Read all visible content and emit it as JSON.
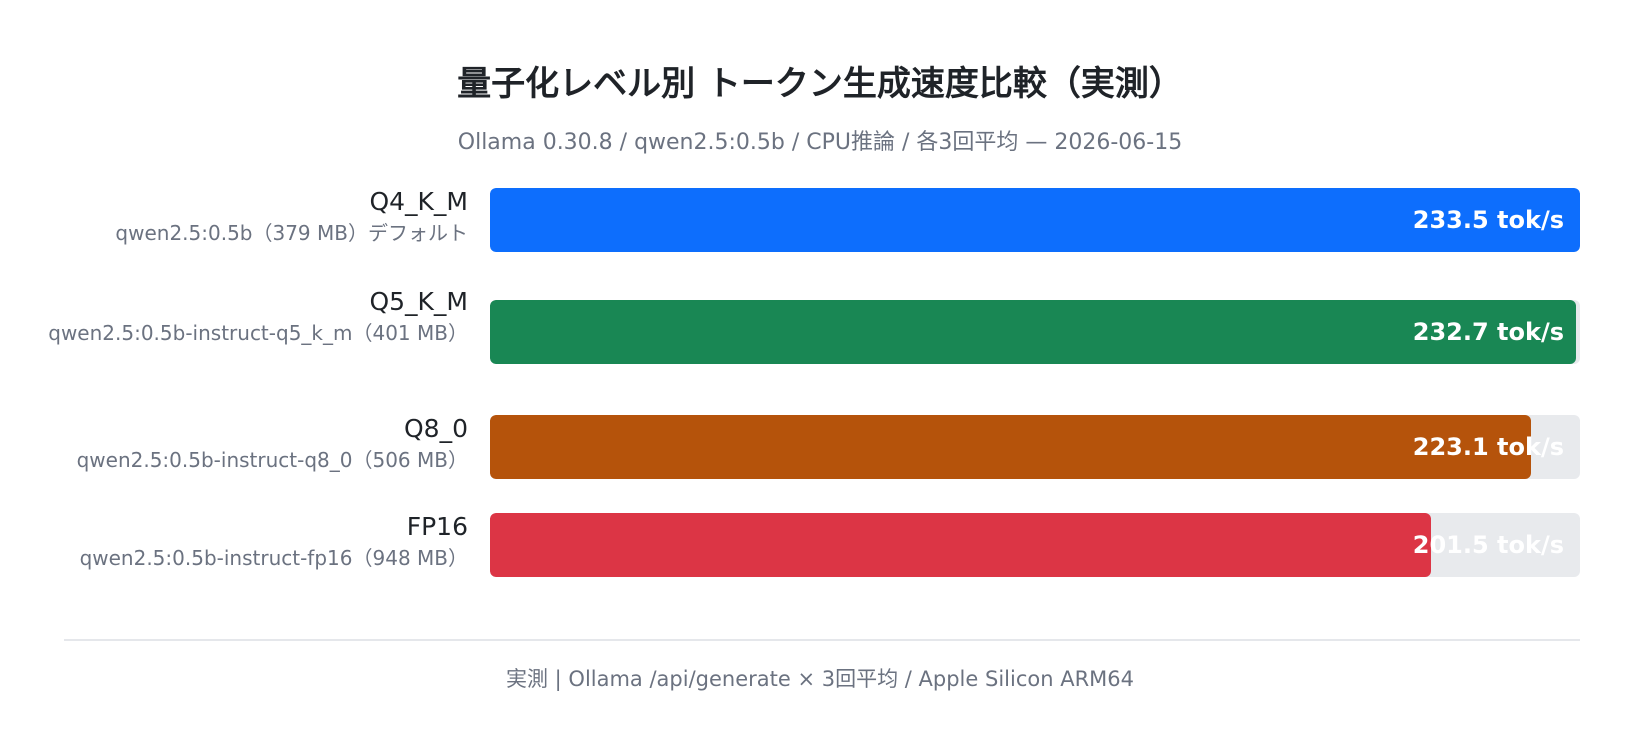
{
  "title": "量子化レベル別 トークン生成速度比較（実測）",
  "subtitle": "Ollama 0.30.8 / qwen2.5:0.5b / CPU推論 / 各3回平均 — 2026-06-15",
  "footer": "実測 | Ollama /api/generate × 3回平均 / Apple Silicon ARM64",
  "chart_data": {
    "type": "bar",
    "orientation": "horizontal",
    "unit": "tok/s",
    "categories": [
      "Q4_K_M",
      "Q5_K_M",
      "Q8_0",
      "FP16"
    ],
    "category_subtitles": [
      "qwen2.5:0.5b（379 MB）デフォルト",
      "qwen2.5:0.5b-instruct-q5_k_m（401 MB）",
      "qwen2.5:0.5b-instruct-q8_0（506 MB）",
      "qwen2.5:0.5b-instruct-fp16（948 MB）"
    ],
    "values": [
      233.5,
      232.7,
      223.1,
      201.5
    ],
    "value_labels": [
      "233.5 tok/s",
      "232.7 tok/s",
      "223.1 tok/s",
      "201.5 tok/s"
    ],
    "colors": [
      "#0d6efd",
      "#198754",
      "#b5530b",
      "#dc3545"
    ],
    "xlim": [
      0,
      233.5
    ],
    "grid": false,
    "legend": "none"
  }
}
